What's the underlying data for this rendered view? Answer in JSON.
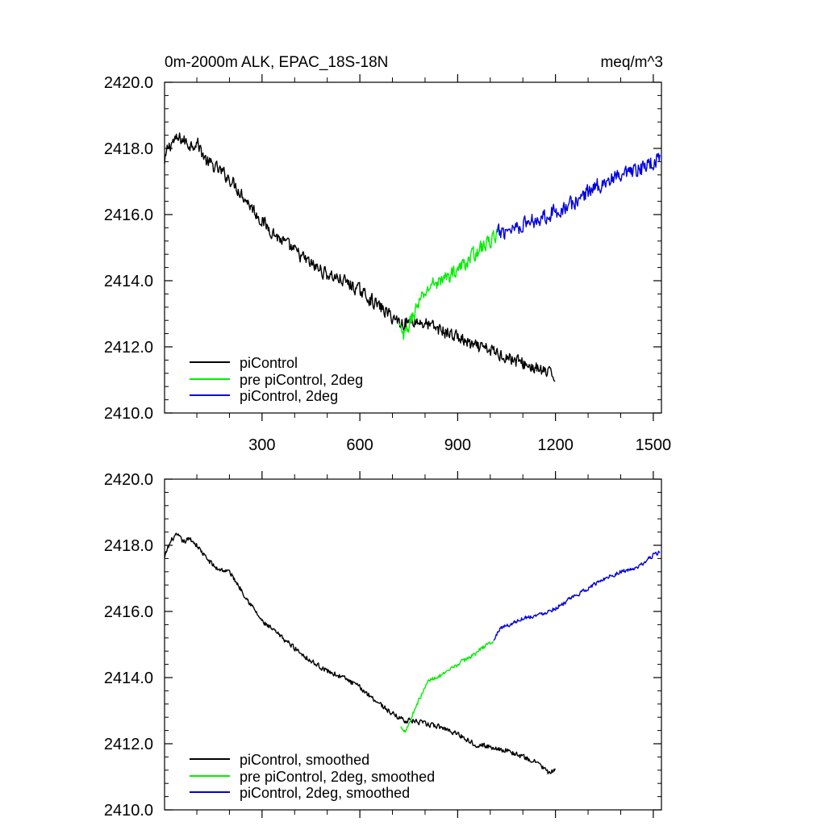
{
  "page": {
    "title_left": "0m-2000m ALK, EPAC_18S-18N",
    "units": "meq/m^3"
  },
  "colors": {
    "piControl": "#000000",
    "pre_piControl_2deg": "#00ee00",
    "piControl_2deg": "#0000dd",
    "axis": "#000000",
    "background": "#ffffff"
  },
  "chart_data": [
    {
      "type": "line",
      "panel": "top",
      "title": "0m-2000m ALK, EPAC_18S-18N",
      "units": "meq/m^3",
      "xlabel": "",
      "ylabel": "",
      "xlim": [
        1,
        1525
      ],
      "ylim": [
        2410.0,
        2420.0
      ],
      "yticks": [
        2410.0,
        2412.0,
        2414.0,
        2416.0,
        2418.0,
        2420.0
      ],
      "ytick_labels": [
        "2410.0",
        "2412.0",
        "2414.0",
        "2416.0",
        "2418.0",
        "2420.0"
      ],
      "xticks": [
        300,
        600,
        900,
        1200,
        1500
      ],
      "xtick_labels": [
        "300",
        "600",
        "900",
        "1200",
        "1500"
      ],
      "legend_position": "bottom-left",
      "series": [
        {
          "name": "piControl",
          "color": "#000000",
          "noise": 0.26,
          "points": [
            [
              1,
              2417.5
            ],
            [
              10,
              2418.0
            ],
            [
              25,
              2418.2
            ],
            [
              50,
              2418.3
            ],
            [
              80,
              2418.1
            ],
            [
              100,
              2418.2
            ],
            [
              130,
              2417.6
            ],
            [
              160,
              2417.4
            ],
            [
              200,
              2417.1
            ],
            [
              240,
              2416.6
            ],
            [
              300,
              2415.8
            ],
            [
              350,
              2415.3
            ],
            [
              400,
              2414.9
            ],
            [
              450,
              2414.5
            ],
            [
              500,
              2414.2
            ],
            [
              550,
              2414.0
            ],
            [
              600,
              2413.7
            ],
            [
              650,
              2413.3
            ],
            [
              700,
              2412.9
            ],
            [
              730,
              2412.7
            ],
            [
              760,
              2412.8
            ],
            [
              800,
              2412.7
            ],
            [
              850,
              2412.5
            ],
            [
              900,
              2412.3
            ],
            [
              950,
              2412.0
            ],
            [
              1000,
              2411.9
            ],
            [
              1050,
              2411.7
            ],
            [
              1100,
              2411.5
            ],
            [
              1150,
              2411.3
            ],
            [
              1200,
              2411.1
            ]
          ]
        },
        {
          "name": "pre piControl, 2deg",
          "color": "#00ee00",
          "noise": 0.28,
          "points": [
            [
              720,
              2412.6
            ],
            [
              735,
              2412.3
            ],
            [
              745,
              2412.5
            ],
            [
              760,
              2412.9
            ],
            [
              780,
              2413.3
            ],
            [
              800,
              2413.6
            ],
            [
              820,
              2413.9
            ],
            [
              850,
              2414.0
            ],
            [
              880,
              2414.2
            ],
            [
              920,
              2414.5
            ],
            [
              960,
              2414.9
            ],
            [
              1000,
              2415.2
            ],
            [
              1020,
              2415.4
            ]
          ]
        },
        {
          "name": "piControl, 2deg",
          "color": "#0000dd",
          "noise": 0.32,
          "points": [
            [
              1020,
              2415.4
            ],
            [
              1060,
              2415.6
            ],
            [
              1100,
              2415.7
            ],
            [
              1150,
              2415.9
            ],
            [
              1200,
              2416.1
            ],
            [
              1250,
              2416.3
            ],
            [
              1300,
              2416.7
            ],
            [
              1350,
              2417.0
            ],
            [
              1400,
              2417.1
            ],
            [
              1450,
              2417.3
            ],
            [
              1500,
              2417.6
            ],
            [
              1520,
              2417.8
            ]
          ]
        }
      ]
    },
    {
      "type": "line",
      "panel": "bottom",
      "xlim": [
        1,
        1525
      ],
      "ylim": [
        2410.0,
        2420.0
      ],
      "yticks": [
        2410.0,
        2412.0,
        2414.0,
        2416.0,
        2418.0,
        2420.0
      ],
      "ytick_labels": [
        "2410.0",
        "2412.0",
        "2414.0",
        "2416.0",
        "2418.0",
        "2420.0"
      ],
      "xticks": [
        300,
        600,
        900,
        1200,
        1500
      ],
      "xtick_labels": [],
      "legend_position": "bottom-left",
      "series": [
        {
          "name": "piControl, smoothed",
          "color": "#000000",
          "noise": 0.1,
          "points": [
            [
              1,
              2417.6
            ],
            [
              10,
              2417.9
            ],
            [
              25,
              2418.2
            ],
            [
              40,
              2418.3
            ],
            [
              60,
              2418.1
            ],
            [
              80,
              2418.2
            ],
            [
              100,
              2418.0
            ],
            [
              130,
              2417.6
            ],
            [
              160,
              2417.3
            ],
            [
              200,
              2417.2
            ],
            [
              240,
              2416.6
            ],
            [
              300,
              2415.7
            ],
            [
              350,
              2415.3
            ],
            [
              400,
              2414.9
            ],
            [
              450,
              2414.5
            ],
            [
              500,
              2414.2
            ],
            [
              550,
              2414.0
            ],
            [
              600,
              2413.7
            ],
            [
              650,
              2413.3
            ],
            [
              700,
              2412.9
            ],
            [
              740,
              2412.7
            ],
            [
              760,
              2412.7
            ],
            [
              800,
              2412.6
            ],
            [
              850,
              2412.5
            ],
            [
              900,
              2412.3
            ],
            [
              950,
              2412.0
            ],
            [
              1000,
              2411.9
            ],
            [
              1050,
              2411.8
            ],
            [
              1100,
              2411.6
            ],
            [
              1150,
              2411.4
            ],
            [
              1180,
              2411.1
            ],
            [
              1200,
              2411.2
            ]
          ]
        },
        {
          "name": "pre piControl, 2deg, smoothed",
          "color": "#00ee00",
          "noise": 0.08,
          "points": [
            [
              725,
              2412.5
            ],
            [
              740,
              2412.4
            ],
            [
              755,
              2412.7
            ],
            [
              770,
              2413.1
            ],
            [
              790,
              2413.5
            ],
            [
              810,
              2413.9
            ],
            [
              830,
              2414.0
            ],
            [
              860,
              2414.1
            ],
            [
              900,
              2414.4
            ],
            [
              950,
              2414.7
            ],
            [
              990,
              2415.0
            ],
            [
              1010,
              2415.1
            ]
          ]
        },
        {
          "name": "piControl, 2deg, smoothed",
          "color": "#0000dd",
          "noise": 0.08,
          "points": [
            [
              1010,
              2415.1
            ],
            [
              1030,
              2415.5
            ],
            [
              1060,
              2415.6
            ],
            [
              1100,
              2415.8
            ],
            [
              1150,
              2415.9
            ],
            [
              1200,
              2416.1
            ],
            [
              1250,
              2416.4
            ],
            [
              1300,
              2416.7
            ],
            [
              1350,
              2417.0
            ],
            [
              1400,
              2417.2
            ],
            [
              1450,
              2417.3
            ],
            [
              1500,
              2417.7
            ],
            [
              1520,
              2417.8
            ]
          ]
        }
      ]
    }
  ]
}
